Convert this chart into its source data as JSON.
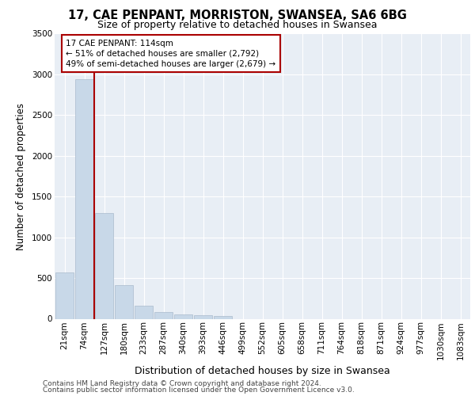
{
  "title_line1": "17, CAE PENPANT, MORRISTON, SWANSEA, SA6 6BG",
  "title_line2": "Size of property relative to detached houses in Swansea",
  "xlabel": "Distribution of detached houses by size in Swansea",
  "ylabel": "Number of detached properties",
  "footnote1": "Contains HM Land Registry data © Crown copyright and database right 2024.",
  "footnote2": "Contains public sector information licensed under the Open Government Licence v3.0.",
  "annotation_line1": "17 CAE PENPANT: 114sqm",
  "annotation_line2": "← 51% of detached houses are smaller (2,792)",
  "annotation_line3": "49% of semi-detached houses are larger (2,679) →",
  "bar_color": "#c8d8e8",
  "bar_edge_color": "#aabbcc",
  "redline_color": "#aa0000",
  "bin_labels": [
    "21sqm",
    "74sqm",
    "127sqm",
    "180sqm",
    "233sqm",
    "287sqm",
    "340sqm",
    "393sqm",
    "446sqm",
    "499sqm",
    "552sqm",
    "605sqm",
    "658sqm",
    "711sqm",
    "764sqm",
    "818sqm",
    "871sqm",
    "924sqm",
    "977sqm",
    "1030sqm",
    "1083sqm"
  ],
  "bar_heights": [
    570,
    2940,
    1300,
    415,
    160,
    85,
    55,
    45,
    35,
    0,
    0,
    0,
    0,
    0,
    0,
    0,
    0,
    0,
    0,
    0,
    0
  ],
  "ylim": [
    0,
    3500
  ],
  "yticks": [
    0,
    500,
    1000,
    1500,
    2000,
    2500,
    3000,
    3500
  ],
  "background_color": "#e8eef5",
  "grid_color": "#ffffff",
  "title1_fontsize": 10.5,
  "title2_fontsize": 9.0,
  "ylabel_fontsize": 8.5,
  "xlabel_fontsize": 9.0,
  "tick_fontsize": 7.5,
  "footnote_fontsize": 6.5
}
